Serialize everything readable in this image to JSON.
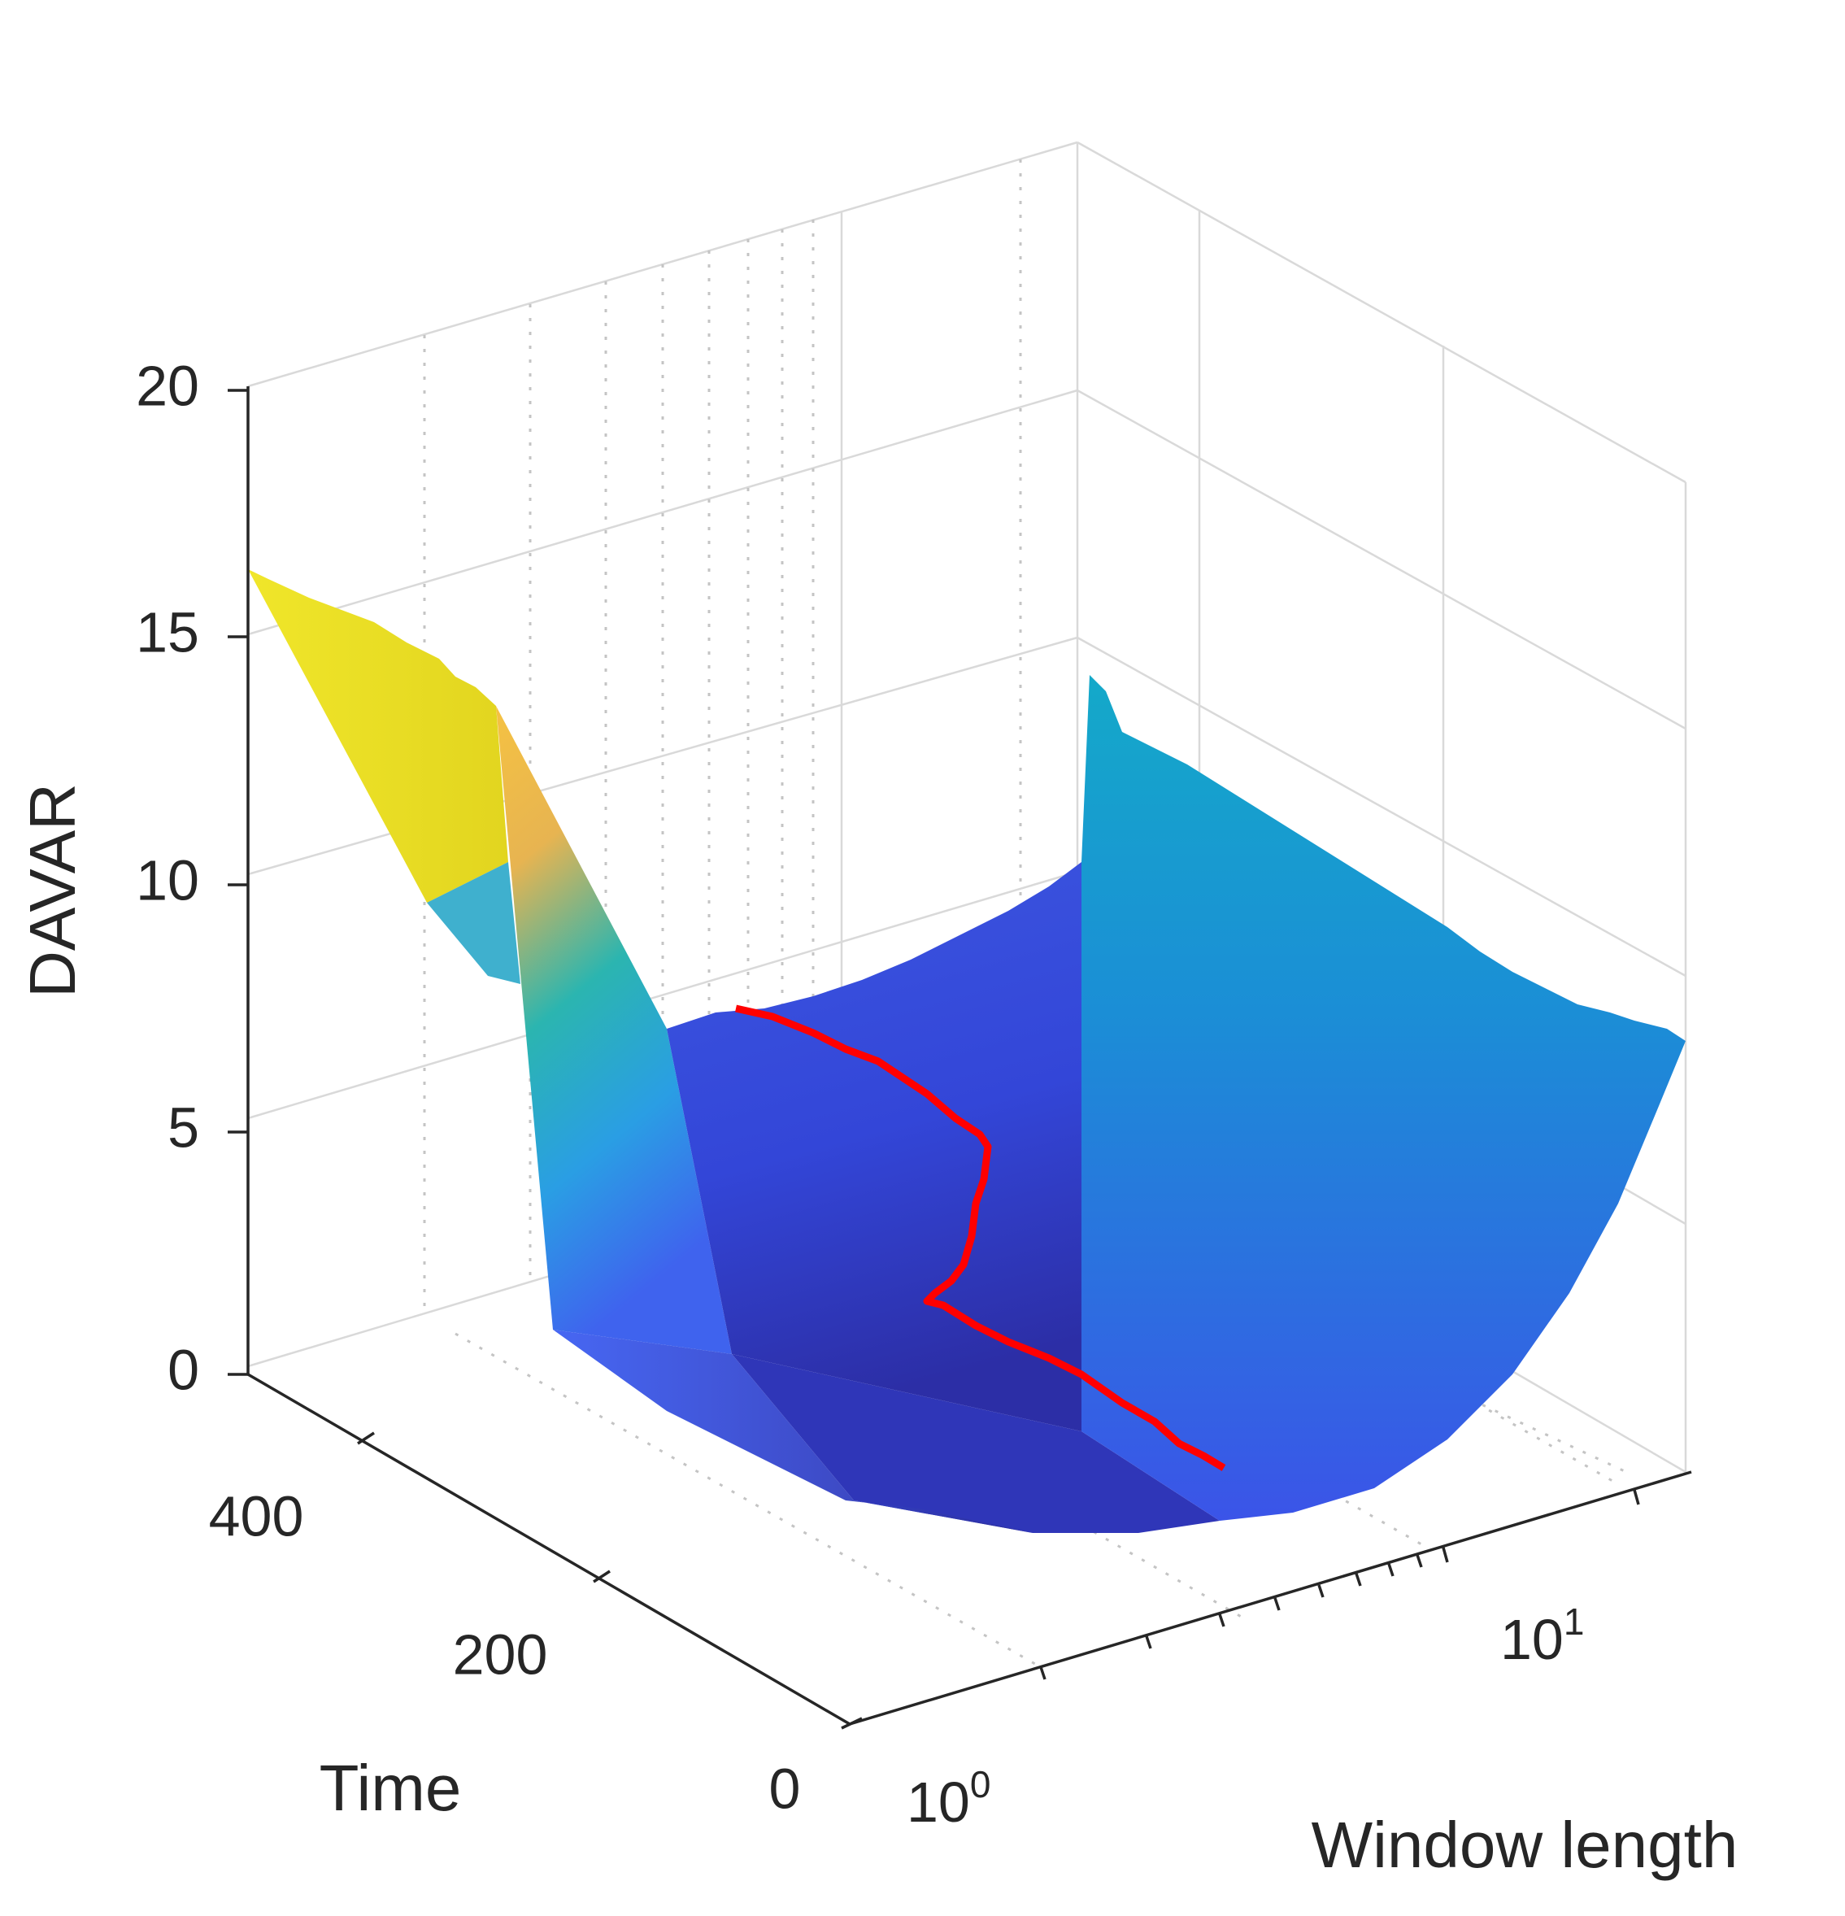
{
  "chart_data": {
    "type": "surface",
    "zlabel": "DAVAR",
    "ylabel": "Time",
    "xlabel": "Window length",
    "z_ticks": [
      0,
      5,
      10,
      15,
      20
    ],
    "z_tick_labels": [
      "0",
      "5",
      "10",
      "15",
      "20"
    ],
    "zlim": [
      0,
      20
    ],
    "time_ticks": [
      0,
      200,
      400
    ],
    "time_tick_labels": [
      "0",
      "200",
      "400"
    ],
    "time_lim": [
      0,
      500
    ],
    "window_scale": "log",
    "window_ticks": [
      1,
      10
    ],
    "window_tick_labels": [
      {
        "base": "10",
        "exp": "0"
      },
      {
        "base": "10",
        "exp": "1"
      }
    ],
    "window_lim": [
      1,
      20
    ],
    "grid": true,
    "colormap": "parula",
    "surface_profile": {
      "window_length": [
        1,
        1.15,
        1.3,
        1.5,
        2,
        3,
        4,
        5,
        6,
        8,
        10,
        12,
        15,
        20
      ],
      "davar_at_time_0": [
        0.9,
        0.6,
        0.45,
        0.35,
        0.25,
        0.2,
        0.25,
        0.35,
        0.5,
        0.85,
        1.3,
        1.9,
        2.8,
        4.4
      ],
      "davar_at_time_500": [
        16.2,
        13.6,
        9.3,
        5.4,
        4.8,
        4.3,
        4.1,
        4.0,
        4.2,
        4.7,
        5.3,
        6.0,
        7.0,
        8.3
      ]
    },
    "highlight_path": {
      "color": "#ff0000",
      "time": [
        0,
        50,
        100,
        150,
        200,
        240,
        260,
        300,
        350,
        400,
        450,
        500
      ],
      "window_length": [
        4.6,
        4.5,
        4.4,
        4.3,
        4.2,
        4.0,
        3.0,
        2.9,
        2.8,
        2.75,
        2.7,
        2.7
      ],
      "davar": [
        0.3,
        0.3,
        0.3,
        0.3,
        0.25,
        0.2,
        3.4,
        3.6,
        3.8,
        4.0,
        4.1,
        4.2
      ]
    }
  }
}
